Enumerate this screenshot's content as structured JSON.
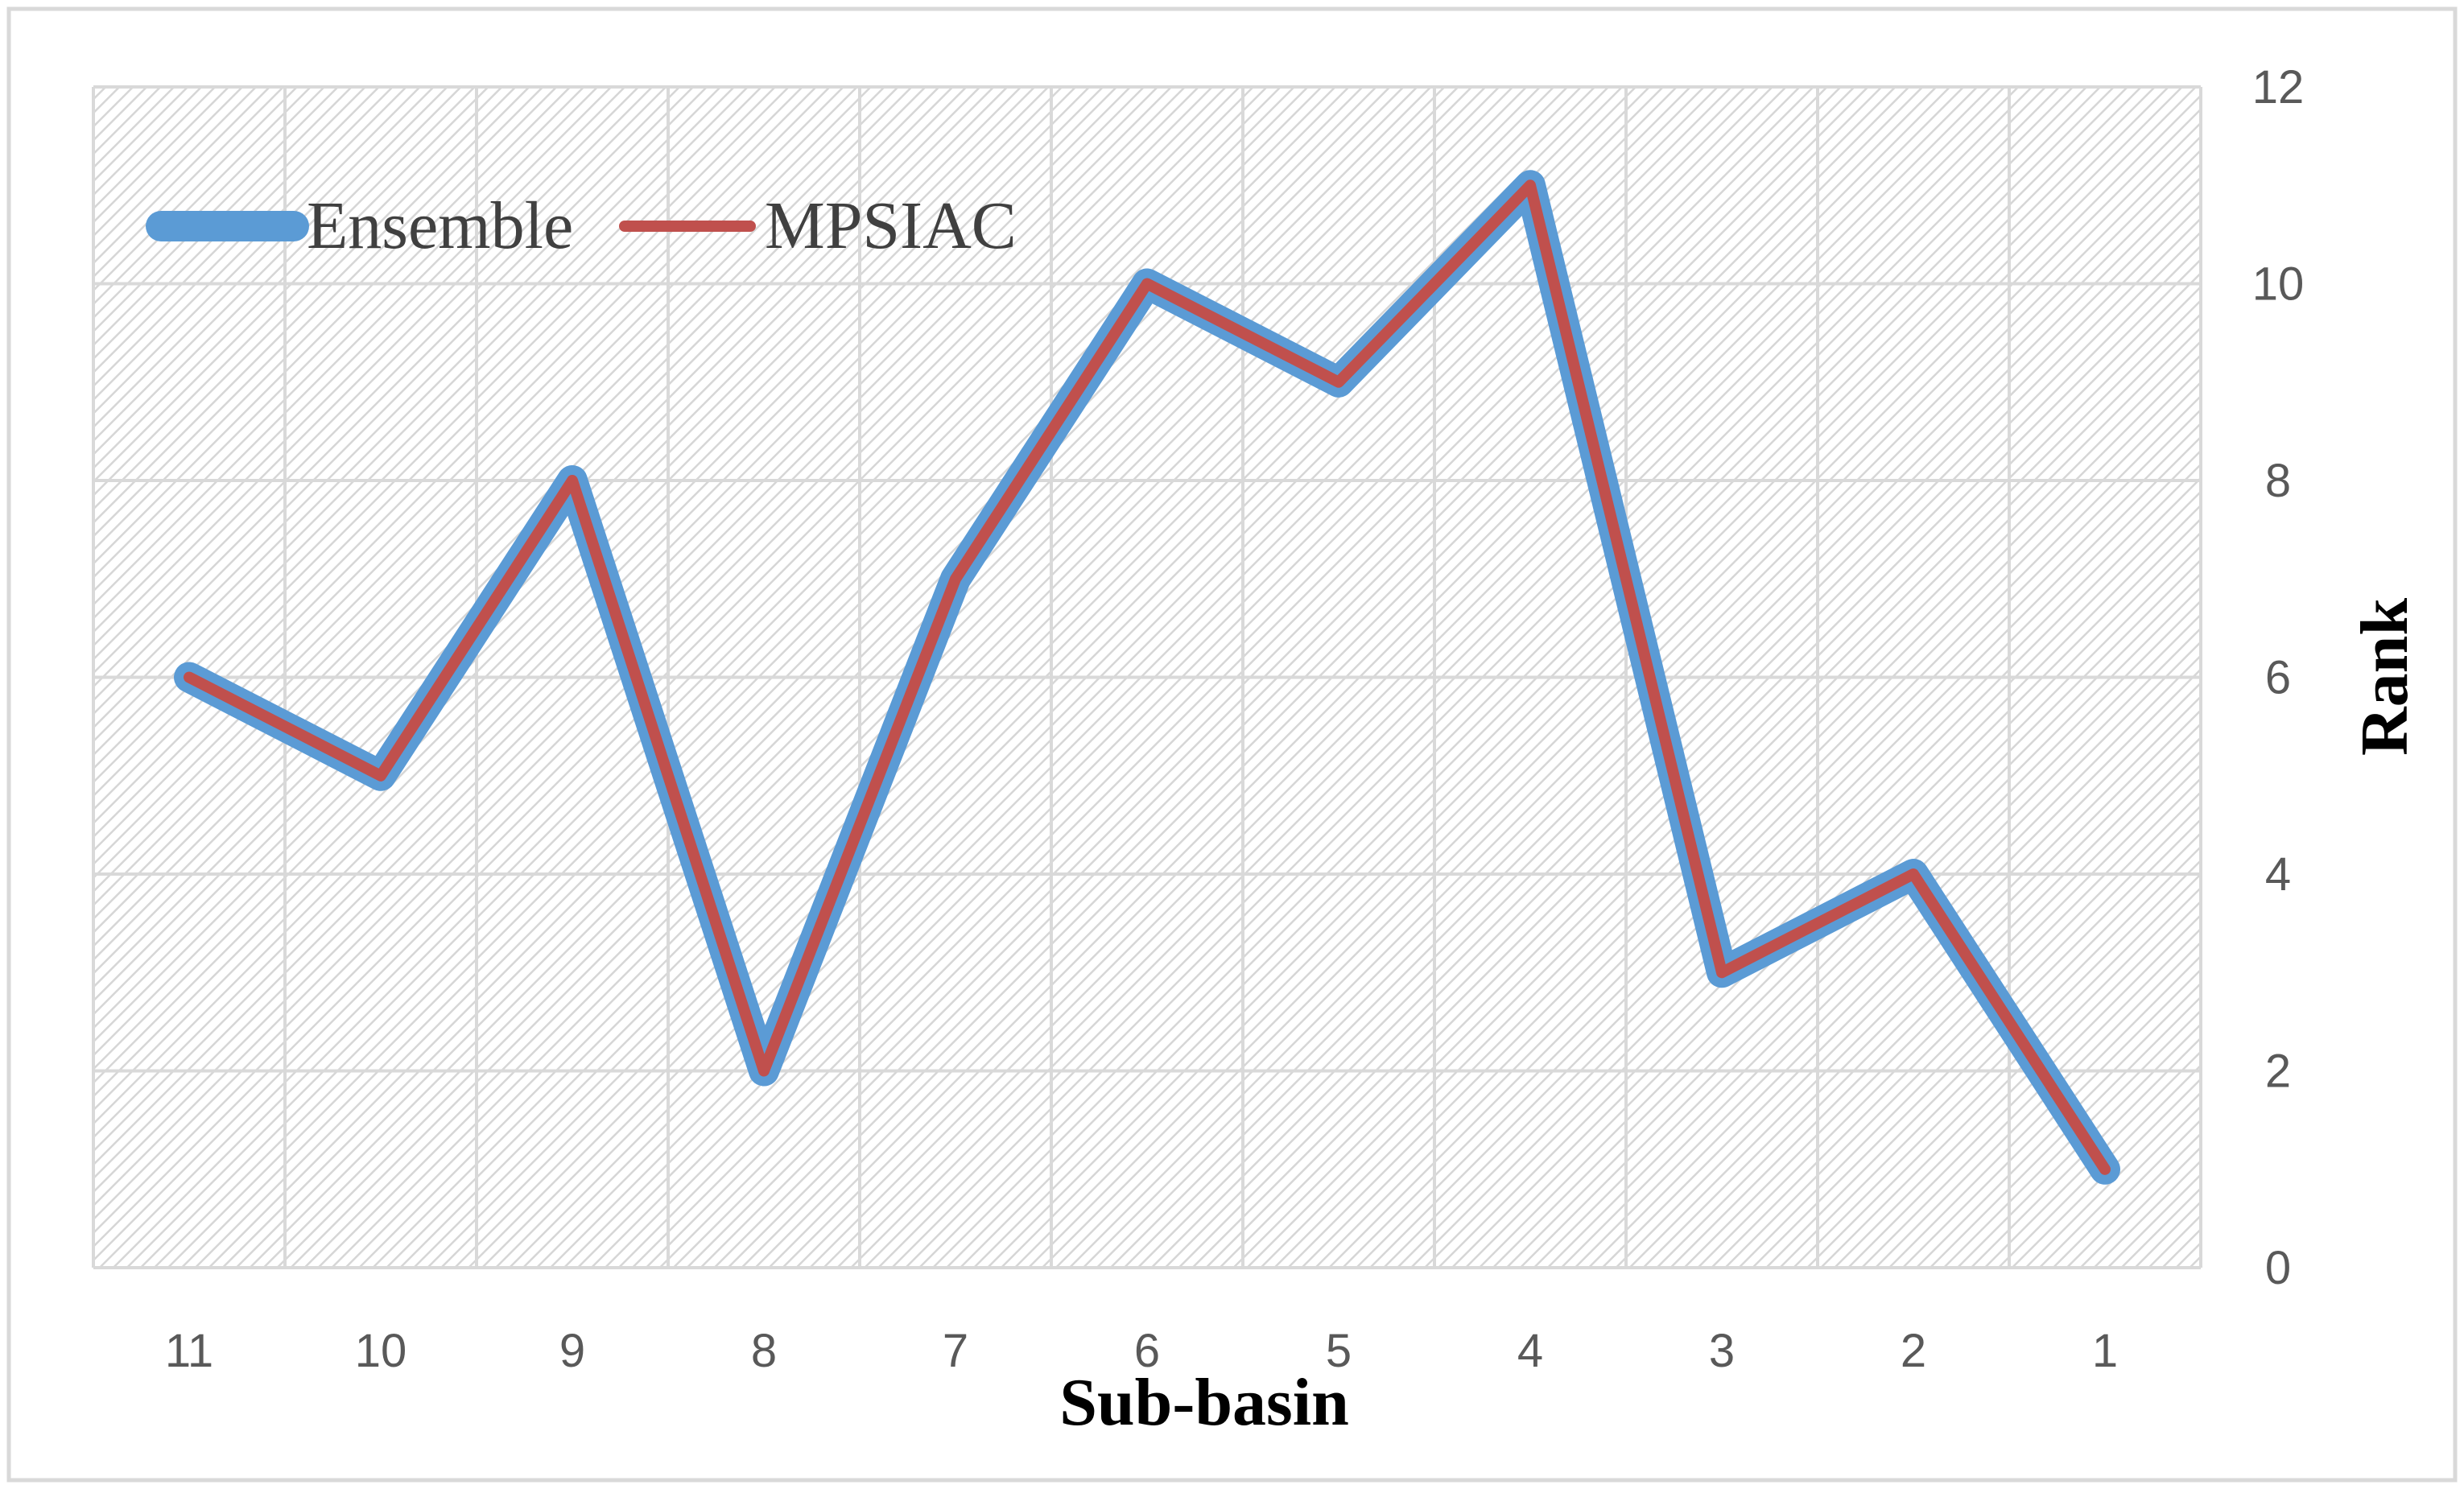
{
  "chart_data": {
    "type": "line",
    "categories": [
      "11",
      "10",
      "9",
      "8",
      "7",
      "6",
      "5",
      "4",
      "3",
      "2",
      "1"
    ],
    "series": [
      {
        "name": "Ensemble",
        "values": [
          6,
          5,
          8,
          2,
          7,
          10,
          9,
          11,
          3,
          4,
          1
        ],
        "color": "#5B9BD5"
      },
      {
        "name": "MPSIAC",
        "values": [
          6,
          5,
          8,
          2,
          7,
          10,
          9,
          11,
          3,
          4,
          1
        ],
        "color": "#C0504D"
      }
    ],
    "xlabel": "Sub-basin",
    "ylabel": "Rank",
    "ylim": [
      0,
      12
    ],
    "yticks": [
      "0",
      "2",
      "4",
      "6",
      "8",
      "10",
      "12"
    ],
    "y_axis_side": "right",
    "grid": true,
    "plot_background": "diagonal hatch pattern",
    "legend_position": "top-left"
  }
}
